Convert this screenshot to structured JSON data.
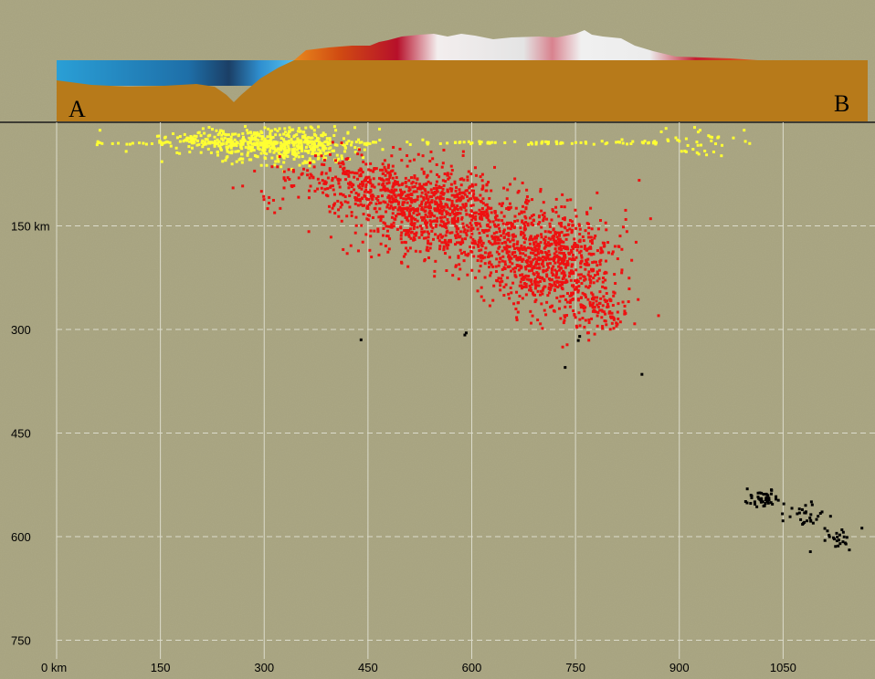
{
  "profile": {
    "label_start": "A",
    "label_end": "B"
  },
  "chart_data": {
    "type": "scatter",
    "title": "",
    "xlabel": "",
    "ylabel": "",
    "x_unit": "km",
    "y_unit": "km",
    "xlim": [
      0,
      1150
    ],
    "ylim": [
      760,
      0
    ],
    "y_inverted": true,
    "grid": true,
    "x_ticks": [
      "0 km",
      "150",
      "300",
      "450",
      "600",
      "750",
      "900",
      "1050"
    ],
    "y_ticks": [
      "150 km",
      "300",
      "450",
      "600",
      "750"
    ],
    "x_tick_values": [
      0,
      150,
      300,
      450,
      600,
      750,
      900,
      1050
    ],
    "y_tick_values": [
      150,
      300,
      450,
      600,
      750
    ],
    "colors": {
      "background": "#a6a27e",
      "grid": "#dcdccc",
      "shallow": "#ffff33",
      "intermediate": "#ee1111",
      "deep": "#000000",
      "crust": "#b77a1a",
      "ocean": "#2a9fd6"
    },
    "series": [
      {
        "color": "#ffff33",
        "clusters": [
          {
            "cx": 300,
            "cy": 30,
            "sx": 70,
            "sy": 12,
            "n": 300
          },
          {
            "cx": 340,
            "cy": 38,
            "sx": 45,
            "sy": 14,
            "n": 220
          },
          {
            "cx": 230,
            "cy": 28,
            "sx": 40,
            "sy": 6,
            "n": 80
          },
          {
            "cx": 930,
            "cy": 28,
            "sx": 40,
            "sy": 12,
            "n": 40
          }
        ],
        "lines": [
          {
            "x0": 55,
            "x1": 870,
            "y": 30,
            "n": 140
          }
        ]
      },
      {
        "color": "#ee1111",
        "clusters": [
          {
            "cx": 530,
            "cy": 120,
            "sx": 55,
            "sy": 30,
            "n": 700
          },
          {
            "cx": 715,
            "cy": 200,
            "sx": 45,
            "sy": 35,
            "n": 750
          },
          {
            "cx": 420,
            "cy": 85,
            "sx": 50,
            "sy": 20,
            "n": 230
          },
          {
            "cx": 620,
            "cy": 165,
            "sx": 50,
            "sy": 30,
            "n": 320
          },
          {
            "cx": 775,
            "cy": 265,
            "sx": 25,
            "sy": 20,
            "n": 140
          }
        ],
        "points": [
          [
            255,
            95
          ],
          [
            305,
            125
          ],
          [
            842,
            84
          ],
          [
            870,
            280
          ],
          [
            420,
            190
          ],
          [
            455,
            195
          ],
          [
            560,
            180
          ]
        ]
      },
      {
        "color": "#000000",
        "points": [
          [
            440,
            315
          ],
          [
            592,
            305
          ],
          [
            590,
            308
          ],
          [
            756,
            310
          ],
          [
            754,
            316
          ],
          [
            735,
            355
          ],
          [
            846,
            365
          ]
        ],
        "clusters": [
          {
            "cx": 1022,
            "cy": 545,
            "sx": 10,
            "sy": 8,
            "n": 45
          },
          {
            "cx": 1085,
            "cy": 570,
            "sx": 20,
            "sy": 8,
            "n": 30
          },
          {
            "cx": 1130,
            "cy": 605,
            "sx": 12,
            "sy": 8,
            "n": 25
          }
        ]
      }
    ]
  }
}
